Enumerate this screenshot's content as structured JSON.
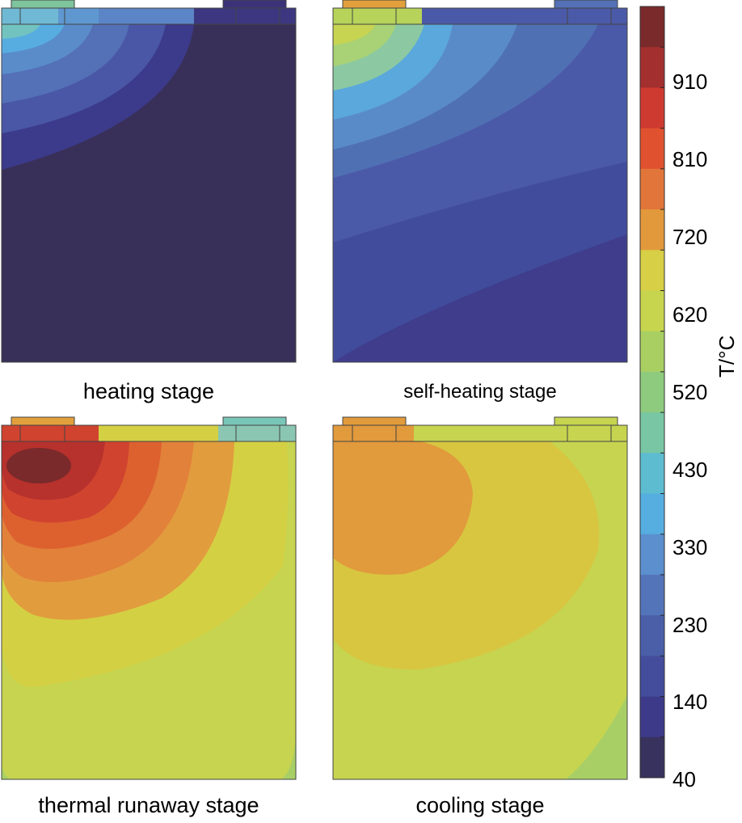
{
  "panels": [
    {
      "label": "heating stage"
    },
    {
      "label": "self-heating stage"
    },
    {
      "label": "thermal runaway stage"
    },
    {
      "label": "cooling stage"
    }
  ],
  "colorbar": {
    "unit_label": "T/°C",
    "ticks": [
      "910",
      "810",
      "720",
      "620",
      "520",
      "430",
      "330",
      "230",
      "140",
      "40"
    ],
    "colors_top_to_bottom": [
      "#7a2a2a",
      "#a32f2f",
      "#cf3a30",
      "#e0522f",
      "#e2763a",
      "#e2993c",
      "#d7cf45",
      "#c7d54e",
      "#a9cf62",
      "#8fcb7f",
      "#78c6a3",
      "#5dbcd0",
      "#56aee0",
      "#5b8fcd",
      "#5474b9",
      "#4a5fa8",
      "#434d9c",
      "#3d3a8a",
      "#38325e"
    ]
  }
}
